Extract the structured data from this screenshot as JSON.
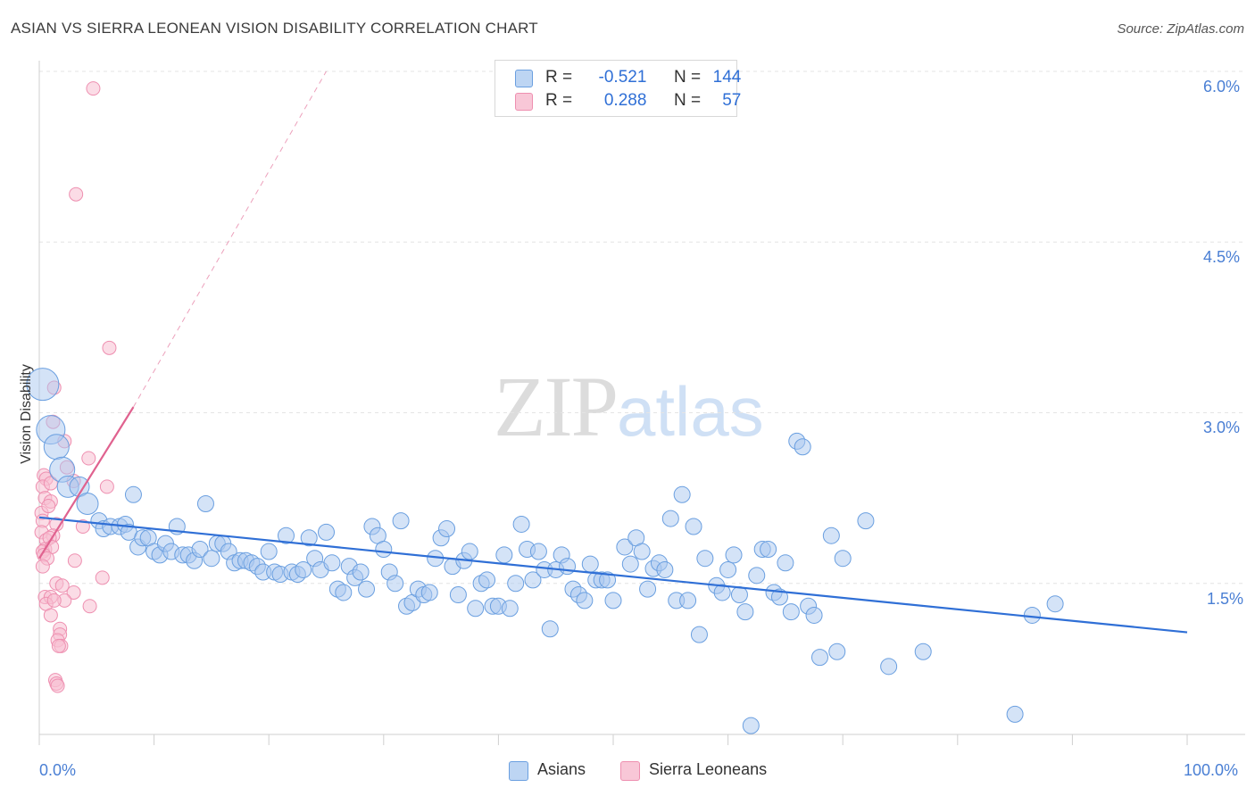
{
  "title": "ASIAN VS SIERRA LEONEAN VISION DISABILITY CORRELATION CHART",
  "source": "Source: ZipAtlas.com",
  "watermark": {
    "zip": "ZIP",
    "atlas": "atlas"
  },
  "colors": {
    "asian": "#6a9fe0",
    "asian_fill": "#a9c8f0",
    "sierra": "#ee8fb0",
    "sierra_fill": "#f7bfd2",
    "asian_line": "#2f6fd6",
    "sierra_line": "#e0628f",
    "axis_label": "#4a7fd4"
  },
  "legend": {
    "rows": [
      {
        "r_label": "R =",
        "r_value": "-0.521",
        "n_label": "N =",
        "n_value": "144"
      },
      {
        "r_label": "R =",
        "r_value": "0.288",
        "n_label": "N =",
        "n_value": "57"
      }
    ]
  },
  "bottom_legend": {
    "asian": "Asians",
    "sierra": "Sierra Leoneans"
  },
  "chart_data": {
    "type": "scatter",
    "title": "ASIAN VS SIERRA LEONEAN VISION DISABILITY CORRELATION CHART",
    "xlabel": "",
    "ylabel": "Vision Disability",
    "xlim": [
      0,
      100
    ],
    "ylim": [
      0,
      6.3
    ],
    "x_tick_labels": [
      "0.0%",
      "100.0%"
    ],
    "y_ticks": [
      1.5,
      3.0,
      4.5,
      6.0
    ],
    "y_tick_labels": [
      "1.5%",
      "3.0%",
      "4.5%",
      "6.0%"
    ],
    "grid": "horizontal dashed",
    "legend_placement": "top-center",
    "series": [
      {
        "name": "Asians",
        "r": -0.521,
        "n": 144,
        "trend": {
          "x": [
            0,
            100
          ],
          "y": [
            2.08,
            1.07
          ]
        },
        "points": [
          [
            0.3,
            3.25
          ],
          [
            1.0,
            2.85
          ],
          [
            1.5,
            2.7
          ],
          [
            2.0,
            2.5
          ],
          [
            2.5,
            2.35
          ],
          [
            3.5,
            2.35
          ],
          [
            4.2,
            2.2
          ],
          [
            5.2,
            2.05
          ],
          [
            5.6,
            1.98
          ],
          [
            6.2,
            2.0
          ],
          [
            7.0,
            2.0
          ],
          [
            7.5,
            2.02
          ],
          [
            7.8,
            1.95
          ],
          [
            8.2,
            2.28
          ],
          [
            8.6,
            1.82
          ],
          [
            9.0,
            1.9
          ],
          [
            9.5,
            1.9
          ],
          [
            10.0,
            1.78
          ],
          [
            10.5,
            1.75
          ],
          [
            11.0,
            1.85
          ],
          [
            11.5,
            1.78
          ],
          [
            12.0,
            2.0
          ],
          [
            12.5,
            1.75
          ],
          [
            13.0,
            1.75
          ],
          [
            13.5,
            1.7
          ],
          [
            14.0,
            1.8
          ],
          [
            14.5,
            2.2
          ],
          [
            15.0,
            1.72
          ],
          [
            15.5,
            1.85
          ],
          [
            16.0,
            1.85
          ],
          [
            16.5,
            1.78
          ],
          [
            17.0,
            1.68
          ],
          [
            17.5,
            1.7
          ],
          [
            18.0,
            1.7
          ],
          [
            18.5,
            1.68
          ],
          [
            19.0,
            1.65
          ],
          [
            19.5,
            1.6
          ],
          [
            20.0,
            1.78
          ],
          [
            20.5,
            1.6
          ],
          [
            21.0,
            1.58
          ],
          [
            21.5,
            1.92
          ],
          [
            22.0,
            1.6
          ],
          [
            22.5,
            1.58
          ],
          [
            23.0,
            1.62
          ],
          [
            23.5,
            1.9
          ],
          [
            24.0,
            1.72
          ],
          [
            24.5,
            1.62
          ],
          [
            25.0,
            1.95
          ],
          [
            25.5,
            1.68
          ],
          [
            26.0,
            1.45
          ],
          [
            26.5,
            1.42
          ],
          [
            27.0,
            1.65
          ],
          [
            27.5,
            1.55
          ],
          [
            28.0,
            1.6
          ],
          [
            28.5,
            1.45
          ],
          [
            29.0,
            2.0
          ],
          [
            29.5,
            1.92
          ],
          [
            30.0,
            1.8
          ],
          [
            30.5,
            1.6
          ],
          [
            31.0,
            1.5
          ],
          [
            31.5,
            2.05
          ],
          [
            32.0,
            1.3
          ],
          [
            32.5,
            1.33
          ],
          [
            33.0,
            1.45
          ],
          [
            33.5,
            1.4
          ],
          [
            34.0,
            1.42
          ],
          [
            34.5,
            1.72
          ],
          [
            35.0,
            1.9
          ],
          [
            35.5,
            1.98
          ],
          [
            36.0,
            1.65
          ],
          [
            36.5,
            1.4
          ],
          [
            37.0,
            1.7
          ],
          [
            37.5,
            1.78
          ],
          [
            38.0,
            1.28
          ],
          [
            38.5,
            1.5
          ],
          [
            39.0,
            1.53
          ],
          [
            39.5,
            1.3
          ],
          [
            40.0,
            1.3
          ],
          [
            40.5,
            1.75
          ],
          [
            41.0,
            1.28
          ],
          [
            41.5,
            1.5
          ],
          [
            42.0,
            2.02
          ],
          [
            42.5,
            1.8
          ],
          [
            43.0,
            1.53
          ],
          [
            43.5,
            1.78
          ],
          [
            44.0,
            1.62
          ],
          [
            44.5,
            1.1
          ],
          [
            45.0,
            1.62
          ],
          [
            45.5,
            1.75
          ],
          [
            46.0,
            1.65
          ],
          [
            46.5,
            1.45
          ],
          [
            47.0,
            1.4
          ],
          [
            47.5,
            1.35
          ],
          [
            48.0,
            1.67
          ],
          [
            48.5,
            1.53
          ],
          [
            49.0,
            1.53
          ],
          [
            49.5,
            1.53
          ],
          [
            50.0,
            1.35
          ],
          [
            51.0,
            1.82
          ],
          [
            51.5,
            1.67
          ],
          [
            52.0,
            1.9
          ],
          [
            52.5,
            1.78
          ],
          [
            53.0,
            1.45
          ],
          [
            53.5,
            1.63
          ],
          [
            54.0,
            1.68
          ],
          [
            54.5,
            1.62
          ],
          [
            55.0,
            2.07
          ],
          [
            55.5,
            1.35
          ],
          [
            56.0,
            2.28
          ],
          [
            56.5,
            1.35
          ],
          [
            57.0,
            2.0
          ],
          [
            57.5,
            1.05
          ],
          [
            58.0,
            1.72
          ],
          [
            59.0,
            1.48
          ],
          [
            59.5,
            1.42
          ],
          [
            60.0,
            1.62
          ],
          [
            60.5,
            1.75
          ],
          [
            61.0,
            1.4
          ],
          [
            61.5,
            1.25
          ],
          [
            62.0,
            0.25
          ],
          [
            62.5,
            1.57
          ],
          [
            63.0,
            1.8
          ],
          [
            63.5,
            1.8
          ],
          [
            64.0,
            1.42
          ],
          [
            64.5,
            1.38
          ],
          [
            65.0,
            1.68
          ],
          [
            65.5,
            1.25
          ],
          [
            66.0,
            2.75
          ],
          [
            66.5,
            2.7
          ],
          [
            67.0,
            1.3
          ],
          [
            67.5,
            1.22
          ],
          [
            68.0,
            0.85
          ],
          [
            69.0,
            1.92
          ],
          [
            69.5,
            0.9
          ],
          [
            70.0,
            1.72
          ],
          [
            72.0,
            2.05
          ],
          [
            74.0,
            0.77
          ],
          [
            77.0,
            0.9
          ],
          [
            85.0,
            0.35
          ],
          [
            86.5,
            1.22
          ],
          [
            88.5,
            1.32
          ]
        ]
      },
      {
        "name": "Sierra Leoneans",
        "r": 0.288,
        "n": 57,
        "trend": {
          "x": [
            0,
            8.2
          ],
          "y": [
            1.72,
            3.05
          ],
          "dashed_extension": {
            "x": [
              8.2,
              25.0
            ],
            "y": [
              3.05,
              6.0
            ]
          }
        },
        "points": [
          [
            4.7,
            5.85
          ],
          [
            3.2,
            4.92
          ],
          [
            6.1,
            3.57
          ],
          [
            1.3,
            3.22
          ],
          [
            1.2,
            2.92
          ],
          [
            2.2,
            2.75
          ],
          [
            4.3,
            2.6
          ],
          [
            2.4,
            2.52
          ],
          [
            0.4,
            2.45
          ],
          [
            0.6,
            2.42
          ],
          [
            0.3,
            2.35
          ],
          [
            1.0,
            2.38
          ],
          [
            3.0,
            2.4
          ],
          [
            5.9,
            2.35
          ],
          [
            0.5,
            2.25
          ],
          [
            1.0,
            2.22
          ],
          [
            0.2,
            2.12
          ],
          [
            0.8,
            2.18
          ],
          [
            0.3,
            2.05
          ],
          [
            1.5,
            2.02
          ],
          [
            3.8,
            2.0
          ],
          [
            0.2,
            1.95
          ],
          [
            1.2,
            1.92
          ],
          [
            0.6,
            1.88
          ],
          [
            0.9,
            1.9
          ],
          [
            0.5,
            1.8
          ],
          [
            0.3,
            1.78
          ],
          [
            1.1,
            1.82
          ],
          [
            0.4,
            1.75
          ],
          [
            0.7,
            1.72
          ],
          [
            3.1,
            1.7
          ],
          [
            0.3,
            1.65
          ],
          [
            5.5,
            1.55
          ],
          [
            1.5,
            1.5
          ],
          [
            2.0,
            1.48
          ],
          [
            3.0,
            1.42
          ],
          [
            0.5,
            1.38
          ],
          [
            1.0,
            1.38
          ],
          [
            2.2,
            1.35
          ],
          [
            0.6,
            1.32
          ],
          [
            1.3,
            1.35
          ],
          [
            4.4,
            1.3
          ],
          [
            1.0,
            1.22
          ],
          [
            1.8,
            1.1
          ],
          [
            1.8,
            1.05
          ],
          [
            1.6,
            1.0
          ],
          [
            1.9,
            0.95
          ],
          [
            1.7,
            0.95
          ],
          [
            1.4,
            0.65
          ],
          [
            1.5,
            0.62
          ],
          [
            1.6,
            0.6
          ]
        ]
      }
    ]
  }
}
